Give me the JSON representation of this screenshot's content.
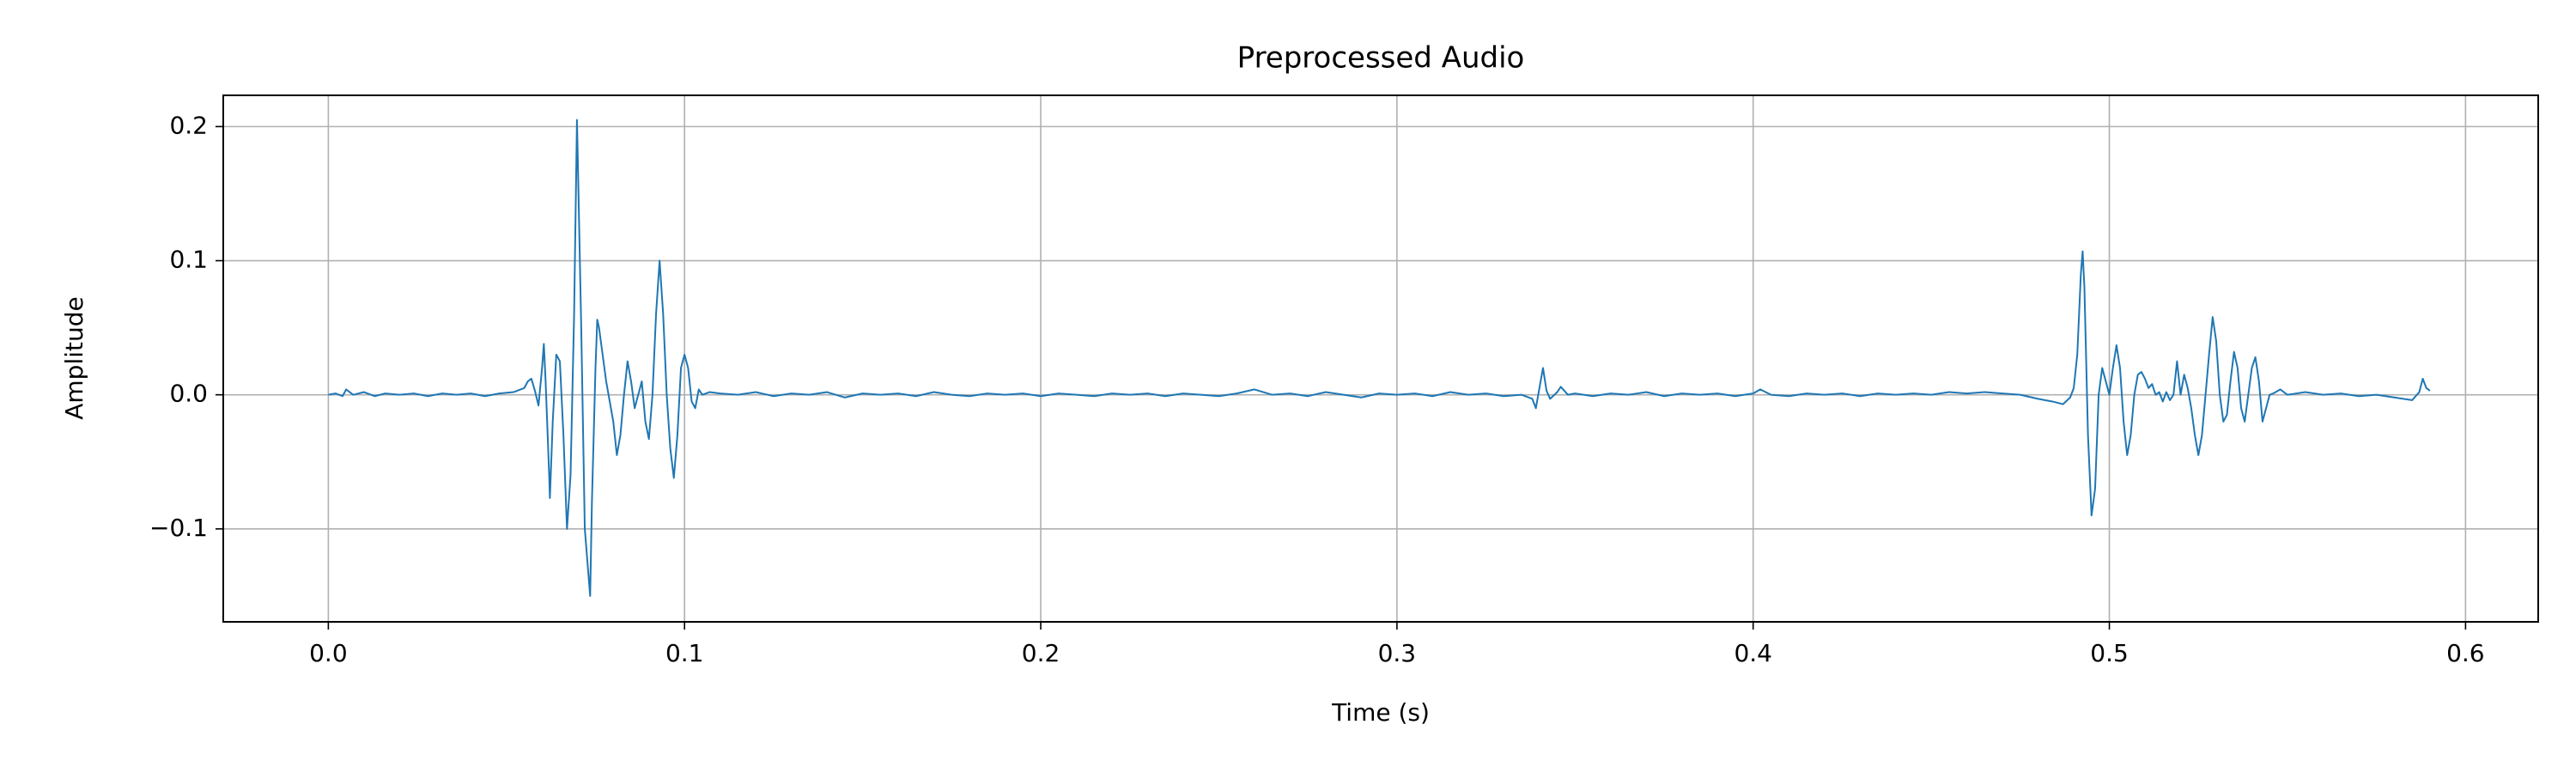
{
  "chart_data": {
    "type": "line",
    "title": "Preprocessed Audio",
    "x_label": "Time (s)",
    "y_label": "Amplitude",
    "color": "#1f77b4",
    "grid": true,
    "xlim": [
      -0.0295,
      0.6204
    ],
    "ylim": [
      -0.1693,
      0.2233
    ],
    "xticks": [
      {
        "value": 0,
        "label": "0.0"
      },
      0.1,
      0.2,
      0.3,
      0.4,
      0.5,
      0.6
    ],
    "yticks": [
      {
        "value": -0.1,
        "label": "−0.1"
      },
      {
        "value": 0,
        "label": "0.0"
      },
      0.1,
      0.2
    ],
    "x": [
      0,
      0.002,
      0.004,
      0.005,
      0.007,
      0.01,
      0.013,
      0.016,
      0.02,
      0.024,
      0.028,
      0.032,
      0.036,
      0.04,
      0.044,
      0.048,
      0.052,
      0.055,
      0.056,
      0.057,
      0.058,
      0.059,
      0.06,
      0.0605,
      0.061,
      0.062,
      0.0622,
      0.063,
      0.064,
      0.065,
      0.066,
      0.067,
      0.068,
      0.069,
      0.0698,
      0.07,
      0.071,
      0.072,
      0.0735,
      0.074,
      0.075,
      0.0755,
      0.076,
      0.077,
      0.078,
      0.079,
      0.08,
      0.081,
      0.082,
      0.083,
      0.084,
      0.085,
      0.086,
      0.087,
      0.088,
      0.089,
      0.09,
      0.091,
      0.092,
      0.093,
      0.094,
      0.095,
      0.096,
      0.097,
      0.098,
      0.099,
      0.1,
      0.101,
      0.102,
      0.103,
      0.104,
      0.105,
      0.107,
      0.11,
      0.115,
      0.12,
      0.125,
      0.13,
      0.135,
      0.14,
      0.145,
      0.15,
      0.155,
      0.16,
      0.165,
      0.17,
      0.175,
      0.18,
      0.185,
      0.19,
      0.195,
      0.2,
      0.205,
      0.21,
      0.215,
      0.22,
      0.225,
      0.23,
      0.235,
      0.24,
      0.245,
      0.25,
      0.255,
      0.26,
      0.265,
      0.27,
      0.275,
      0.28,
      0.285,
      0.29,
      0.295,
      0.3,
      0.305,
      0.31,
      0.315,
      0.32,
      0.325,
      0.33,
      0.335,
      0.338,
      0.339,
      0.34,
      0.341,
      0.342,
      0.343,
      0.345,
      0.346,
      0.348,
      0.35,
      0.355,
      0.36,
      0.365,
      0.37,
      0.375,
      0.38,
      0.385,
      0.39,
      0.395,
      0.4,
      0.402,
      0.405,
      0.41,
      0.415,
      0.42,
      0.425,
      0.43,
      0.435,
      0.44,
      0.445,
      0.45,
      0.455,
      0.46,
      0.465,
      0.47,
      0.475,
      0.48,
      0.484,
      0.487,
      0.489,
      0.49,
      0.491,
      0.492,
      0.4925,
      0.493,
      0.494,
      0.495,
      0.496,
      0.497,
      0.498,
      0.499,
      0.5,
      0.501,
      0.502,
      0.503,
      0.504,
      0.505,
      0.506,
      0.507,
      0.508,
      0.509,
      0.51,
      0.511,
      0.512,
      0.513,
      0.514,
      0.515,
      0.516,
      0.517,
      0.518,
      0.519,
      0.52,
      0.521,
      0.522,
      0.523,
      0.524,
      0.525,
      0.526,
      0.527,
      0.528,
      0.529,
      0.53,
      0.531,
      0.532,
      0.533,
      0.534,
      0.535,
      0.536,
      0.537,
      0.538,
      0.539,
      0.54,
      0.541,
      0.542,
      0.543,
      0.544,
      0.545,
      0.546,
      0.548,
      0.55,
      0.555,
      0.56,
      0.565,
      0.57,
      0.575,
      0.58,
      0.585,
      0.587,
      0.588,
      0.589,
      0.59
    ],
    "values": [
      0,
      0.001,
      -0.001,
      0.004,
      0,
      0.002,
      -0.001,
      0.001,
      0,
      0.001,
      -0.001,
      0.001,
      0,
      0.001,
      -0.001,
      0.001,
      0.002,
      0.005,
      0.01,
      0.012,
      0.003,
      -0.008,
      0.02,
      0.038,
      0.01,
      -0.06,
      -0.077,
      -0.02,
      0.03,
      0.025,
      -0.03,
      -0.1,
      -0.06,
      0.06,
      0.205,
      0.18,
      0.05,
      -0.1,
      -0.15,
      -0.08,
      0.02,
      0.056,
      0.05,
      0.03,
      0.01,
      -0.005,
      -0.02,
      -0.045,
      -0.03,
      0,
      0.025,
      0.01,
      -0.01,
      0,
      0.01,
      -0.02,
      -0.033,
      0,
      0.06,
      0.1,
      0.06,
      0,
      -0.04,
      -0.062,
      -0.03,
      0.02,
      0.03,
      0.02,
      -0.005,
      -0.01,
      0.004,
      0,
      0.002,
      0.001,
      0,
      0.002,
      -0.001,
      0.001,
      0,
      0.002,
      -0.002,
      0.001,
      0,
      0.001,
      -0.001,
      0.002,
      0,
      -0.001,
      0.001,
      0,
      0.001,
      -0.001,
      0.001,
      0,
      -0.001,
      0.001,
      0,
      0.001,
      -0.001,
      0.001,
      0,
      -0.001,
      0.001,
      0.004,
      0,
      0.001,
      -0.001,
      0.002,
      0,
      -0.002,
      0.001,
      0,
      0.001,
      -0.001,
      0.002,
      0,
      0.001,
      -0.001,
      0,
      -0.003,
      -0.01,
      0.005,
      0.02,
      0.003,
      -0.003,
      0.002,
      0.006,
      0,
      0.001,
      -0.001,
      0.001,
      0,
      0.002,
      -0.001,
      0.001,
      0,
      0.001,
      -0.001,
      0.001,
      0.004,
      0,
      -0.001,
      0.001,
      0,
      0.001,
      -0.001,
      0.001,
      0,
      0.001,
      0,
      0.002,
      0.001,
      0.002,
      0.001,
      0,
      -0.003,
      -0.005,
      -0.007,
      -0.002,
      0.005,
      0.03,
      0.09,
      0.107,
      0.08,
      -0.03,
      -0.09,
      -0.07,
      0,
      0.02,
      0.01,
      0,
      0.02,
      0.037,
      0.02,
      -0.02,
      -0.045,
      -0.03,
      0,
      0.015,
      0.017,
      0.012,
      0.005,
      0.008,
      0,
      0.002,
      -0.005,
      0.002,
      -0.004,
      0,
      0.025,
      0,
      0.015,
      0.005,
      -0.01,
      -0.03,
      -0.045,
      -0.03,
      0,
      0.03,
      0.058,
      0.04,
      0,
      -0.02,
      -0.015,
      0.01,
      0.032,
      0.02,
      -0.01,
      -0.02,
      0,
      0.02,
      0.028,
      0.01,
      -0.02,
      -0.01,
      0,
      0.001,
      0.004,
      0,
      0.002,
      0,
      0.001,
      -0.001,
      0,
      -0.002,
      -0.004,
      0.002,
      0.012,
      0.005,
      0.003
    ]
  }
}
